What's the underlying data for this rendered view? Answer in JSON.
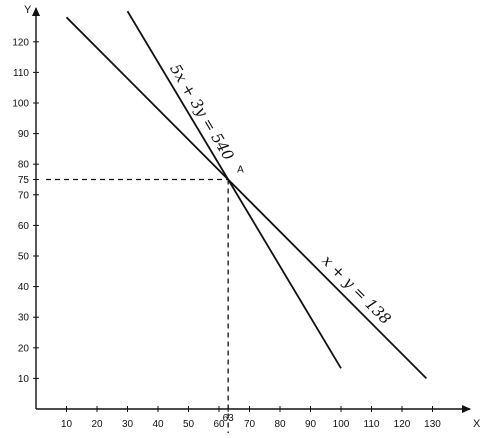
{
  "chart_data": {
    "type": "line",
    "xlabel": "X",
    "ylabel": "Y",
    "xlim": [
      0,
      140
    ],
    "ylim": [
      0,
      130
    ],
    "x_ticks": [
      10,
      20,
      30,
      40,
      50,
      60,
      63,
      70,
      80,
      90,
      100,
      110,
      120,
      130
    ],
    "y_ticks": [
      10,
      20,
      30,
      40,
      50,
      60,
      70,
      75,
      80,
      90,
      100,
      110,
      120
    ],
    "series": [
      {
        "name": "5x + 3y = 540",
        "x": [
          30,
          63,
          100
        ],
        "y": [
          130,
          75,
          13.3
        ]
      },
      {
        "name": "x + y = 138",
        "x": [
          10,
          63,
          128
        ],
        "y": [
          128,
          75,
          10
        ]
      }
    ],
    "point": {
      "label": "A",
      "x": 63,
      "y": 75
    },
    "grid": false
  },
  "colors": {
    "line": "#111111",
    "background": "#ffffff"
  }
}
